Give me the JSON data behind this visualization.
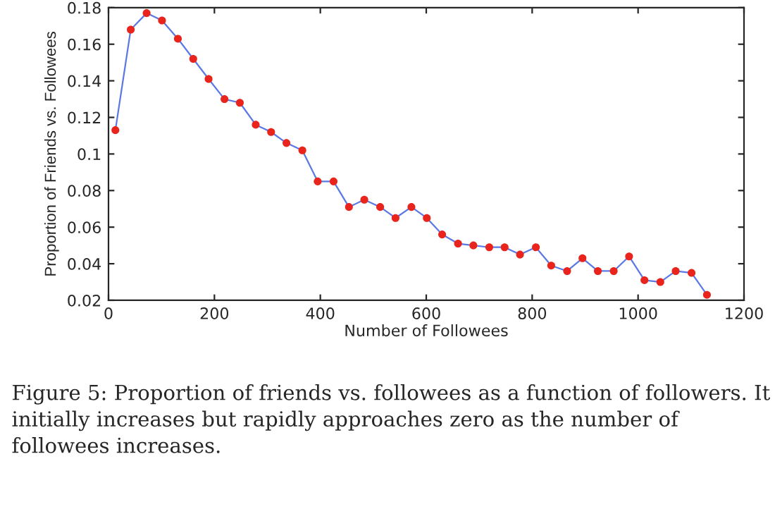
{
  "chart_data": {
    "type": "line",
    "xlabel": "Number of Followees",
    "ylabel": "Proportion of Friends vs. Followees",
    "x": [
      13,
      42,
      72,
      101,
      131,
      160,
      189,
      219,
      248,
      278,
      307,
      336,
      366,
      395,
      425,
      454,
      483,
      513,
      542,
      572,
      601,
      630,
      660,
      689,
      719,
      748,
      777,
      807,
      836,
      866,
      895,
      924,
      954,
      983,
      1012,
      1042,
      1071,
      1101,
      1130
    ],
    "series": [
      {
        "color": "#5a78e6",
        "colors": [
          "#e8241c",
          "#e8241c",
          "#e8241c",
          "#e8241c",
          "#e8241c",
          "#e8241c",
          "#e8241c",
          "#e8241c",
          "#e8241c",
          "#e8241c",
          "#e8241c",
          "#e8241c",
          "#e8241c",
          "#e8241c",
          "#e8241c",
          "#e8241c",
          "#e8241c",
          "#e8241c",
          "#e8241c",
          "#e8241c",
          "#e8241c",
          "#e8241c",
          "#e8241c",
          "#e8241c",
          "#e8241c",
          "#e8241c",
          "#e8241c",
          "#e8241c",
          "#e8241c",
          "#e8241c",
          "#e8241c",
          "#e8241c",
          "#e8241c",
          "#e8241c",
          "#e8241c",
          "#e8241c",
          "#e8241c",
          "#e8241c",
          "#e8241c"
        ],
        "values": [
          0.113,
          0.168,
          0.177,
          0.173,
          0.163,
          0.152,
          0.141,
          0.13,
          0.128,
          0.116,
          0.112,
          0.106,
          0.102,
          0.085,
          0.085,
          0.071,
          0.075,
          0.071,
          0.065,
          0.071,
          0.065,
          0.056,
          0.051,
          0.05,
          0.049,
          0.049,
          0.045,
          0.049,
          0.039,
          0.036,
          0.043,
          0.036,
          0.036,
          0.044,
          0.031,
          0.03,
          0.036,
          0.035,
          0.023
        ]
      }
    ],
    "xlim": [
      0,
      1200
    ],
    "ylim": [
      0.02,
      0.18
    ],
    "xticks": [
      0,
      200,
      400,
      600,
      800,
      1000,
      1200
    ],
    "yticks": [
      0.02,
      0.04,
      0.06,
      0.08,
      {
        "value": 0.1,
        "label": "0.1"
      },
      0.12,
      0.14,
      0.16,
      0.18
    ],
    "marker": "circle",
    "line_style": "solid",
    "grid": false,
    "legend": false,
    "annotations": [
      "Figure 5: Proportion of friends vs. followees as a function of followers. It initially increases but rapidly approaches zero as the number of followees increases."
    ]
  }
}
